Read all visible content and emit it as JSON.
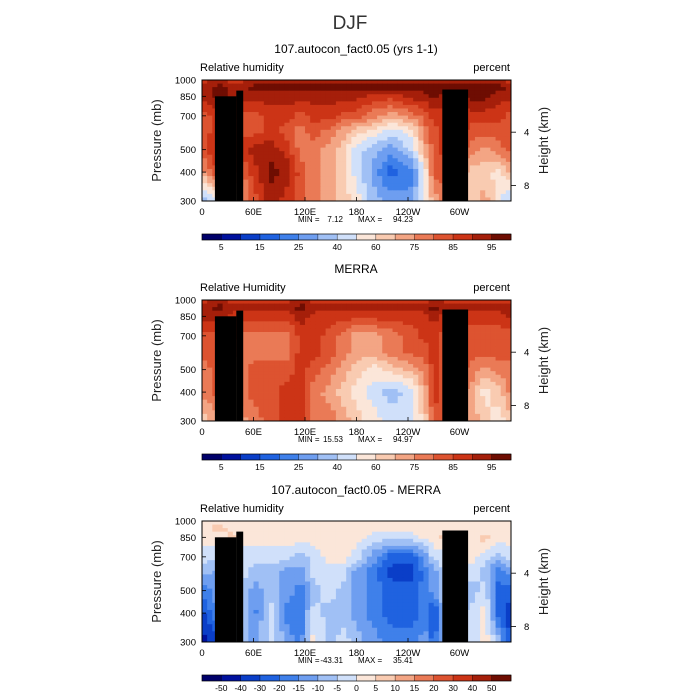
{
  "figure": {
    "title": "DJF"
  },
  "chart_data": [
    {
      "type": "heatmap",
      "title": "107.autocon_fact0.05 (yrs 1-1)",
      "left_label": "Relative humidity",
      "right_label": "percent",
      "ylabel": "Pressure (mb)",
      "ylabel_right": "Height (km)",
      "y_ticks": [
        "300",
        "400",
        "500",
        "700",
        "850",
        "1000"
      ],
      "y_right_ticks": [
        "8",
        "4"
      ],
      "x_ticks": [
        "0",
        "60E",
        "120E",
        "180",
        "120W",
        "60W"
      ],
      "ylim": [
        1000,
        300
      ],
      "min_label": "MIN =",
      "min_value": "7.12",
      "max_label": "MAX =",
      "max_value": "94.23",
      "colorbar_labels": [
        "5",
        "15",
        "25",
        "40",
        "60",
        "75",
        "85",
        "95"
      ],
      "colorbar_levels": [
        0,
        5,
        10,
        15,
        20,
        25,
        30,
        40,
        50,
        60,
        70,
        75,
        80,
        85,
        90,
        95,
        100
      ],
      "sections": {
        "lon": [
          0,
          20,
          35,
          45,
          60,
          80,
          100,
          115,
          130,
          150,
          165,
          180,
          200,
          220,
          245,
          260,
          270,
          285,
          300,
          315,
          330,
          345,
          360
        ],
        "pres": [
          300,
          400,
          500,
          600,
          700,
          850,
          925,
          1000
        ],
        "grid": [
          [
            6,
            7,
            8,
            10,
            12,
            14,
            13,
            12,
            11,
            10,
            9,
            8,
            6,
            5,
            5,
            8,
            10,
            11,
            9,
            9,
            10,
            8,
            6
          ],
          [
            10,
            13,
            12,
            11,
            13,
            15,
            14,
            12,
            11,
            10,
            9,
            7,
            5,
            3,
            4,
            8,
            12,
            12,
            10,
            9,
            9,
            8,
            10
          ],
          [
            12,
            14,
            13,
            13,
            14,
            14,
            13,
            11,
            11,
            10,
            9,
            7,
            6,
            5,
            7,
            10,
            12,
            13,
            12,
            11,
            10,
            11,
            12
          ],
          [
            12,
            13,
            12,
            12,
            12,
            13,
            12,
            11,
            12,
            11,
            10,
            9,
            8,
            7,
            8,
            11,
            12,
            13,
            13,
            12,
            12,
            12,
            12
          ],
          [
            12,
            13,
            13,
            12,
            12,
            13,
            13,
            12,
            13,
            13,
            12,
            12,
            11,
            10,
            11,
            12,
            13,
            13,
            13,
            13,
            13,
            13,
            12
          ],
          [
            14,
            15,
            14,
            14,
            14,
            14,
            14,
            14,
            14,
            14,
            14,
            14,
            13,
            13,
            14,
            14,
            15,
            14,
            14,
            15,
            15,
            14,
            14
          ],
          [
            14,
            15,
            14,
            14,
            15,
            15,
            15,
            15,
            15,
            15,
            15,
            15,
            15,
            15,
            15,
            15,
            15,
            15,
            15,
            15,
            15,
            15,
            14
          ],
          [
            13,
            14,
            13,
            13,
            14,
            14,
            14,
            14,
            14,
            14,
            14,
            14,
            14,
            14,
            14,
            14,
            14,
            14,
            14,
            14,
            14,
            14,
            13
          ]
        ]
      }
    },
    {
      "type": "heatmap",
      "title": "MERRA",
      "left_label": "Relative Humidity",
      "right_label": "percent",
      "ylabel": "Pressure (mb)",
      "ylabel_right": "Height (km)",
      "y_ticks": [
        "300",
        "400",
        "500",
        "700",
        "850",
        "1000"
      ],
      "y_right_ticks": [
        "8",
        "4"
      ],
      "x_ticks": [
        "0",
        "60E",
        "120E",
        "180",
        "120W",
        "60W"
      ],
      "ylim": [
        1000,
        300
      ],
      "min_label": "MIN =",
      "min_value": "15.53",
      "max_label": "MAX =",
      "max_value": "94.97",
      "colorbar_labels": [
        "5",
        "15",
        "25",
        "40",
        "60",
        "75",
        "85",
        "95"
      ],
      "colorbar_levels": [
        0,
        5,
        10,
        15,
        20,
        25,
        30,
        40,
        50,
        60,
        70,
        75,
        80,
        85,
        90,
        95,
        100
      ],
      "sections": {
        "lon": [
          0,
          20,
          35,
          45,
          60,
          80,
          100,
          115,
          130,
          150,
          165,
          180,
          200,
          220,
          245,
          260,
          270,
          285,
          300,
          315,
          330,
          345,
          360
        ],
        "pres": [
          300,
          400,
          500,
          600,
          700,
          850,
          925,
          1000
        ],
        "grid": [
          [
            9,
            10,
            8,
            10,
            11,
            12,
            13,
            13,
            11,
            11,
            10,
            9,
            8,
            7,
            7,
            9,
            12,
            12,
            11,
            10,
            9,
            8,
            9
          ],
          [
            11,
            12,
            7,
            11,
            12,
            12,
            13,
            13,
            11,
            10,
            9,
            8,
            7,
            6,
            7,
            10,
            13,
            12,
            11,
            10,
            8,
            9,
            11
          ],
          [
            11,
            12,
            9,
            11,
            12,
            12,
            12,
            13,
            12,
            11,
            10,
            9,
            8,
            9,
            10,
            11,
            13,
            12,
            12,
            11,
            10,
            11,
            11
          ],
          [
            12,
            12,
            11,
            11,
            11,
            11,
            11,
            13,
            13,
            12,
            11,
            10,
            10,
            11,
            12,
            12,
            13,
            12,
            12,
            12,
            12,
            12,
            12
          ],
          [
            12,
            12,
            12,
            11,
            11,
            11,
            11,
            13,
            13,
            12,
            11,
            10,
            10,
            11,
            12,
            13,
            13,
            12,
            12,
            12,
            12,
            12,
            12
          ],
          [
            14,
            14,
            13,
            13,
            13,
            13,
            13,
            14,
            13,
            13,
            13,
            13,
            13,
            13,
            13,
            13,
            14,
            13,
            13,
            13,
            13,
            13,
            14
          ],
          [
            14,
            15,
            14,
            14,
            14,
            14,
            14,
            15,
            14,
            14,
            14,
            14,
            14,
            14,
            14,
            14,
            15,
            14,
            14,
            14,
            14,
            14,
            14
          ],
          [
            13,
            14,
            13,
            13,
            13,
            13,
            13,
            14,
            13,
            13,
            13,
            13,
            13,
            13,
            13,
            13,
            14,
            13,
            13,
            13,
            13,
            13,
            13
          ]
        ]
      }
    },
    {
      "type": "heatmap",
      "title": "107.autocon_fact0.05 - MERRA",
      "left_label": "Relative humidity",
      "right_label": "percent",
      "ylabel": "Pressure (mb)",
      "ylabel_right": "Height (km)",
      "y_ticks": [
        "300",
        "400",
        "500",
        "700",
        "850",
        "1000"
      ],
      "y_right_ticks": [
        "8",
        "4"
      ],
      "x_ticks": [
        "0",
        "60E",
        "120E",
        "180",
        "120W",
        "60W"
      ],
      "ylim": [
        1000,
        300
      ],
      "min_label": "MIN =",
      "min_value": "-43.31",
      "max_label": "MAX =",
      "max_value": "35.41",
      "colorbar_labels": [
        "-50",
        "-40",
        "-30",
        "-20",
        "-15",
        "-10",
        "-5",
        "0",
        "5",
        "10",
        "15",
        "20",
        "30",
        "40",
        "50"
      ],
      "colorbar_levels": [
        -60,
        -50,
        -40,
        -30,
        -20,
        -15,
        -10,
        -5,
        0,
        5,
        10,
        15,
        20,
        30,
        40,
        50,
        60
      ],
      "sections": {
        "lon": [
          0,
          20,
          35,
          45,
          60,
          80,
          100,
          115,
          130,
          150,
          165,
          180,
          200,
          220,
          245,
          260,
          270,
          285,
          300,
          315,
          330,
          345,
          360
        ],
        "pres": [
          300,
          400,
          500,
          600,
          700,
          850,
          925,
          1000
        ],
        "grid": [
          [
            1,
            2,
            8,
            6,
            5,
            7,
            5,
            4,
            8,
            6,
            7,
            6,
            5,
            4,
            4,
            5,
            3,
            7,
            6,
            7,
            8,
            6,
            2
          ],
          [
            2,
            5,
            8,
            7,
            4,
            7,
            4,
            4,
            7,
            6,
            6,
            5,
            4,
            3,
            3,
            4,
            2,
            7,
            6,
            7,
            8,
            3,
            2
          ],
          [
            4,
            5,
            8,
            7,
            5,
            6,
            5,
            4,
            6,
            7,
            6,
            5,
            4,
            3,
            3,
            4,
            5,
            7,
            6,
            6,
            7,
            3,
            3
          ],
          [
            6,
            5,
            7,
            7,
            6,
            6,
            5,
            5,
            7,
            7,
            7,
            5,
            4,
            2,
            2,
            4,
            5,
            7,
            7,
            7,
            6,
            4,
            5
          ],
          [
            7,
            7,
            8,
            7,
            7,
            7,
            7,
            6,
            7,
            8,
            8,
            7,
            5,
            3,
            3,
            5,
            7,
            7,
            8,
            8,
            7,
            6,
            7
          ],
          [
            8,
            8,
            9,
            8,
            8,
            8,
            8,
            8,
            8,
            8,
            8,
            8,
            7,
            7,
            7,
            8,
            8,
            9,
            8,
            8,
            9,
            8,
            8
          ],
          [
            8,
            9,
            8,
            8,
            8,
            8,
            8,
            8,
            8,
            8,
            8,
            8,
            8,
            8,
            8,
            8,
            8,
            8,
            8,
            8,
            8,
            8,
            8
          ],
          [
            8,
            8,
            8,
            8,
            8,
            8,
            8,
            8,
            8,
            8,
            8,
            8,
            8,
            8,
            8,
            8,
            8,
            8,
            8,
            8,
            8,
            8,
            8
          ]
        ]
      }
    }
  ],
  "colormap": [
    "#00006a",
    "#00119e",
    "#0a3ec8",
    "#1f62e0",
    "#3f80ea",
    "#6e9ef0",
    "#a0c0f5",
    "#d0e0fa",
    "#fbe6d9",
    "#f9cbb1",
    "#f3a584",
    "#ea7a56",
    "#dd5330",
    "#cc3416",
    "#a51f0a",
    "#6e0d02"
  ],
  "terrain_color": "#000000"
}
